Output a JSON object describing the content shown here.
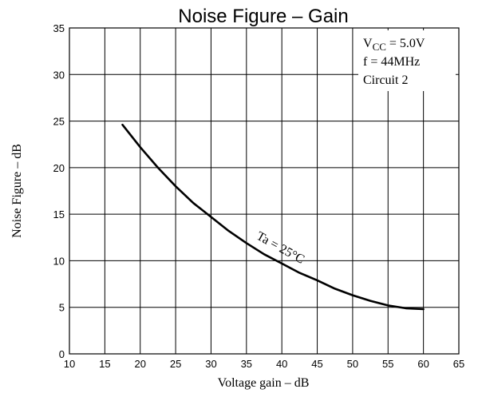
{
  "chart_data": {
    "type": "line",
    "title": "Noise Figure  –  Gain",
    "xlabel": "Voltage gain  –  dB",
    "ylabel": "Noise Figure  –  dB",
    "xlim": [
      10,
      65
    ],
    "ylim": [
      0,
      35
    ],
    "xticks": [
      10,
      15,
      20,
      25,
      30,
      35,
      40,
      45,
      50,
      55,
      60,
      65
    ],
    "yticks": [
      0,
      5,
      10,
      15,
      20,
      25,
      30,
      35
    ],
    "grid": true,
    "conditions": {
      "vcc_main": "V",
      "vcc_sub": "CC",
      "vcc_value": " = 5.0V",
      "freq": "f = 44MHz",
      "circuit": "Circuit 2"
    },
    "series": [
      {
        "name": "Ta = 25°C",
        "x": [
          17.5,
          20,
          22.5,
          25,
          27.5,
          30,
          32.5,
          35,
          37.5,
          40,
          42.5,
          45,
          47.5,
          50,
          52.5,
          55,
          57.5,
          60
        ],
        "y": [
          24.6,
          22.2,
          20.0,
          18.0,
          16.2,
          14.7,
          13.2,
          11.9,
          10.7,
          9.7,
          8.7,
          7.9,
          7.0,
          6.3,
          5.7,
          5.2,
          4.9,
          4.8
        ]
      }
    ]
  }
}
